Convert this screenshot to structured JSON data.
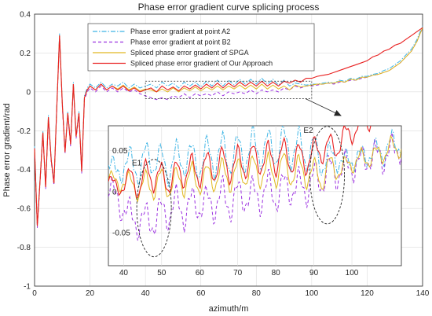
{
  "chart_data": {
    "type": "line",
    "title": "Phase error gradient curve splicing process",
    "xlabel": "azimuth/m",
    "ylabel": "Phase error gradient/rad",
    "xlim": [
      0,
      140
    ],
    "ylim": [
      -1,
      0.4
    ],
    "xticks": [
      0,
      20,
      40,
      60,
      80,
      100,
      120,
      140
    ],
    "yticks": [
      -1,
      -0.8,
      -0.6,
      -0.4,
      -0.2,
      0,
      0.2,
      0.4
    ],
    "grid": true,
    "legend_position": "top-center",
    "series": [
      {
        "name": "Phase error gradient at point A2",
        "color": "#3fb5e5",
        "dash": "dashdot",
        "x": [
          0,
          1,
          2,
          3,
          4,
          5,
          6,
          7,
          8,
          9,
          10,
          11,
          12,
          13,
          14,
          15,
          16,
          17,
          18,
          19,
          20,
          22,
          24,
          26,
          28,
          30,
          32,
          34,
          36,
          38,
          40,
          42,
          44,
          46,
          48,
          50,
          52,
          54,
          56,
          58,
          60,
          62,
          64,
          66,
          68,
          70,
          72,
          74,
          76,
          78,
          80,
          82,
          84,
          86,
          88,
          90,
          92,
          94,
          96,
          98,
          100,
          102,
          104,
          106,
          108,
          110,
          112,
          114,
          116,
          118,
          120,
          122,
          124,
          126,
          128,
          130,
          132,
          134,
          136,
          138,
          140
        ],
        "y": [
          -0.28,
          -0.68,
          -0.44,
          -0.2,
          -0.48,
          -0.12,
          -0.34,
          -0.46,
          -0.08,
          0.3,
          -0.05,
          -0.3,
          -0.1,
          -0.26,
          0.05,
          -0.22,
          -0.1,
          -0.4,
          -0.02,
          0.02,
          0.04,
          0.02,
          0.05,
          0.02,
          0.04,
          0.03,
          0.05,
          0.02,
          0.04,
          0.02,
          0.03,
          0.04,
          0.02,
          0.05,
          0.03,
          0.045,
          0.02,
          0.05,
          0.03,
          0.05,
          0.025,
          0.055,
          0.03,
          0.06,
          0.03,
          0.06,
          0.035,
          0.065,
          0.04,
          0.065,
          0.04,
          0.07,
          0.04,
          0.065,
          0.035,
          0.06,
          0.03,
          0.045,
          0.04,
          0.035,
          0.04,
          0.04,
          0.045,
          0.05,
          0.045,
          0.06,
          0.055,
          0.07,
          0.065,
          0.08,
          0.08,
          0.09,
          0.095,
          0.11,
          0.12,
          0.14,
          0.16,
          0.19,
          0.22,
          0.27,
          0.34
        ]
      },
      {
        "name": "Phase error gradient at point B2",
        "color": "#9b30e0",
        "dash": "dashed",
        "x": [
          0,
          1,
          2,
          3,
          4,
          5,
          6,
          7,
          8,
          9,
          10,
          11,
          12,
          13,
          14,
          15,
          16,
          17,
          18,
          19,
          20,
          22,
          24,
          26,
          28,
          30,
          32,
          34,
          36,
          38,
          40,
          42,
          44,
          46,
          48,
          50,
          52,
          54,
          56,
          58,
          60,
          62,
          64,
          66,
          68,
          70,
          72,
          74,
          76,
          78,
          80,
          82,
          84,
          86,
          88,
          90,
          92,
          94,
          96,
          98,
          100,
          102,
          104,
          106,
          108,
          110,
          112,
          114,
          116,
          118,
          120,
          122,
          124,
          126,
          128,
          130,
          132,
          134,
          136,
          138,
          140
        ],
        "y": [
          -0.3,
          -0.7,
          -0.46,
          -0.22,
          -0.5,
          -0.14,
          -0.36,
          -0.48,
          -0.1,
          0.28,
          -0.07,
          -0.32,
          -0.12,
          -0.28,
          0.03,
          -0.24,
          -0.12,
          -0.42,
          -0.04,
          0.0,
          0.02,
          0.0,
          0.03,
          0.0,
          0.02,
          0.0,
          0.02,
          0.0,
          0.01,
          -0.01,
          -0.02,
          -0.03,
          -0.04,
          -0.03,
          -0.04,
          -0.02,
          -0.03,
          -0.01,
          -0.03,
          -0.01,
          -0.02,
          -0.01,
          -0.02,
          0.0,
          -0.02,
          0.0,
          -0.01,
          0.0,
          -0.01,
          0.01,
          -0.01,
          0.01,
          0.0,
          0.01,
          0.0,
          0.02,
          0.01,
          0.03,
          0.02,
          0.03,
          0.03,
          0.035,
          0.04,
          0.045,
          0.04,
          0.05,
          0.05,
          0.06,
          0.06,
          0.07,
          0.075,
          0.085,
          0.09,
          0.1,
          0.11,
          0.13,
          0.15,
          0.18,
          0.21,
          0.26,
          0.33
        ]
      },
      {
        "name": "Spliced phase error gradient of SPGA",
        "color": "#e0b820",
        "dash": "solid",
        "x": [
          0,
          1,
          2,
          3,
          4,
          5,
          6,
          7,
          8,
          9,
          10,
          11,
          12,
          13,
          14,
          15,
          16,
          17,
          18,
          19,
          20,
          22,
          24,
          26,
          28,
          30,
          32,
          34,
          36,
          38,
          40,
          42,
          44,
          46,
          48,
          50,
          52,
          54,
          56,
          58,
          60,
          62,
          64,
          66,
          68,
          70,
          72,
          74,
          76,
          78,
          80,
          82,
          84,
          86,
          88,
          90,
          92,
          94,
          96,
          98,
          100,
          102,
          104,
          106,
          108,
          110,
          112,
          114,
          116,
          118,
          120,
          122,
          124,
          126,
          128,
          130,
          132,
          134,
          136,
          138,
          140
        ],
        "y": [
          -0.29,
          -0.69,
          -0.45,
          -0.21,
          -0.49,
          -0.13,
          -0.35,
          -0.47,
          -0.09,
          0.29,
          -0.06,
          -0.31,
          -0.11,
          -0.27,
          0.04,
          -0.23,
          -0.11,
          -0.41,
          -0.03,
          0.01,
          0.03,
          0.01,
          0.04,
          0.01,
          0.03,
          0.015,
          0.035,
          0.01,
          0.025,
          0.005,
          0.015,
          0.01,
          0.0,
          0.015,
          0.0,
          0.02,
          0.0,
          0.02,
          0.005,
          0.025,
          0.005,
          0.025,
          0.01,
          0.03,
          0.01,
          0.03,
          0.015,
          0.035,
          0.015,
          0.035,
          0.015,
          0.04,
          0.015,
          0.035,
          0.015,
          0.03,
          0.01,
          0.035,
          0.025,
          0.03,
          0.035,
          0.04,
          0.04,
          0.045,
          0.045,
          0.055,
          0.05,
          0.065,
          0.06,
          0.075,
          0.075,
          0.085,
          0.09,
          0.1,
          0.11,
          0.13,
          0.15,
          0.18,
          0.21,
          0.26,
          0.33
        ]
      },
      {
        "name": "Spliced phase error gradient of Our Approach",
        "color": "#e82020",
        "dash": "solid",
        "x": [
          0,
          1,
          2,
          3,
          4,
          5,
          6,
          7,
          8,
          9,
          10,
          11,
          12,
          13,
          14,
          15,
          16,
          17,
          18,
          19,
          20,
          22,
          24,
          26,
          28,
          30,
          32,
          34,
          36,
          38,
          40,
          42,
          44,
          46,
          48,
          50,
          52,
          54,
          56,
          58,
          60,
          62,
          64,
          66,
          68,
          70,
          72,
          74,
          76,
          78,
          80,
          82,
          84,
          86,
          88,
          90,
          92,
          94,
          96,
          98,
          100,
          102,
          104,
          106,
          108,
          110,
          112,
          114,
          116,
          118,
          120,
          122,
          124,
          126,
          128,
          130,
          132,
          134,
          136,
          138,
          140
        ],
        "y": [
          -0.29,
          -0.69,
          -0.45,
          -0.21,
          -0.49,
          -0.13,
          -0.35,
          -0.47,
          -0.09,
          0.29,
          -0.06,
          -0.31,
          -0.11,
          -0.27,
          0.04,
          -0.23,
          -0.11,
          -0.41,
          -0.03,
          0.01,
          0.03,
          0.01,
          0.04,
          0.01,
          0.03,
          0.01,
          0.03,
          0.005,
          0.02,
          0.0,
          0.01,
          0.02,
          0.0,
          0.03,
          0.01,
          0.025,
          0.005,
          0.03,
          0.015,
          0.035,
          0.015,
          0.04,
          0.02,
          0.045,
          0.02,
          0.045,
          0.025,
          0.05,
          0.03,
          0.05,
          0.03,
          0.055,
          0.03,
          0.05,
          0.03,
          0.055,
          0.045,
          0.06,
          0.05,
          0.07,
          0.07,
          0.08,
          0.085,
          0.09,
          0.1,
          0.11,
          0.12,
          0.13,
          0.14,
          0.15,
          0.16,
          0.18,
          0.19,
          0.21,
          0.22,
          0.24,
          0.25,
          0.27,
          0.29,
          0.31,
          0.33
        ]
      }
    ],
    "inset": {
      "xlim": [
        36,
        113
      ],
      "ylim": [
        -0.09,
        0.08
      ],
      "xticks": [
        40,
        50,
        60,
        70,
        80,
        90,
        100
      ],
      "yticks": [
        -0.05,
        0,
        0.05
      ],
      "ytick_labels": [
        "-0.05",
        "0",
        "0.05"
      ],
      "source_box_x": [
        40,
        100
      ],
      "source_box_y": [
        -0.035,
        0.055
      ],
      "annotations": [
        {
          "text": "E1",
          "x": 48,
          "y": 0.0
        },
        {
          "text": "E2",
          "x": 93,
          "y": 0.04
        }
      ]
    }
  }
}
